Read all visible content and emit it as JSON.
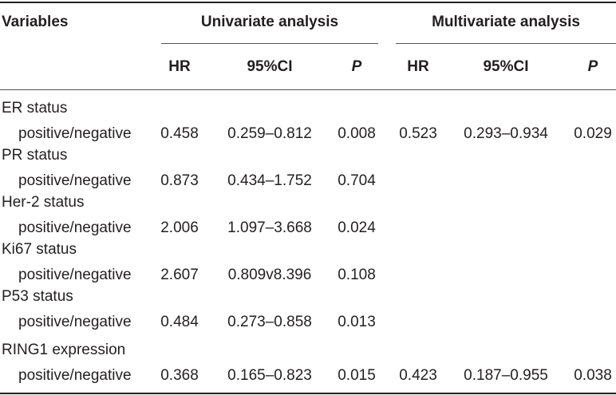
{
  "header": {
    "variables": "Variables",
    "univariate": "Univariate analysis",
    "multivariate": "Multivariate analysis",
    "hr": "HR",
    "ci": "95%CI",
    "p": "P"
  },
  "rows": [
    {
      "label": "ER status",
      "sub": "positive/negative",
      "uni": [
        "0.458",
        "0.259–0.812",
        "0.008"
      ],
      "multi": [
        "0.523",
        "0.293–0.934",
        "0.029"
      ]
    },
    {
      "label": "PR status",
      "sub": "positive/negative",
      "uni": [
        "0.873",
        "0.434–1.752",
        "0.704"
      ],
      "multi": [
        "",
        "",
        ""
      ]
    },
    {
      "label": "Her-2 status",
      "sub": "positive/negative",
      "uni": [
        "2.006",
        "1.097–3.668",
        "0.024"
      ],
      "multi": [
        "",
        "",
        ""
      ]
    },
    {
      "label": "Ki67 status",
      "sub": "positive/negative",
      "uni": [
        "2.607",
        "0.809v8.396",
        "0.108"
      ],
      "multi": [
        "",
        "",
        ""
      ]
    },
    {
      "label": "P53 status",
      "sub": "positive/negative",
      "uni": [
        "0.484",
        "0.273–0.858",
        "0.013"
      ],
      "multi": [
        "",
        "",
        ""
      ]
    },
    {
      "label": "RING1 expression",
      "sub": "positive/negative",
      "uni": [
        "0.368",
        "0.165–0.823",
        "0.015"
      ],
      "multi": [
        "0.423",
        "0.187–0.955",
        "0.038"
      ]
    }
  ]
}
